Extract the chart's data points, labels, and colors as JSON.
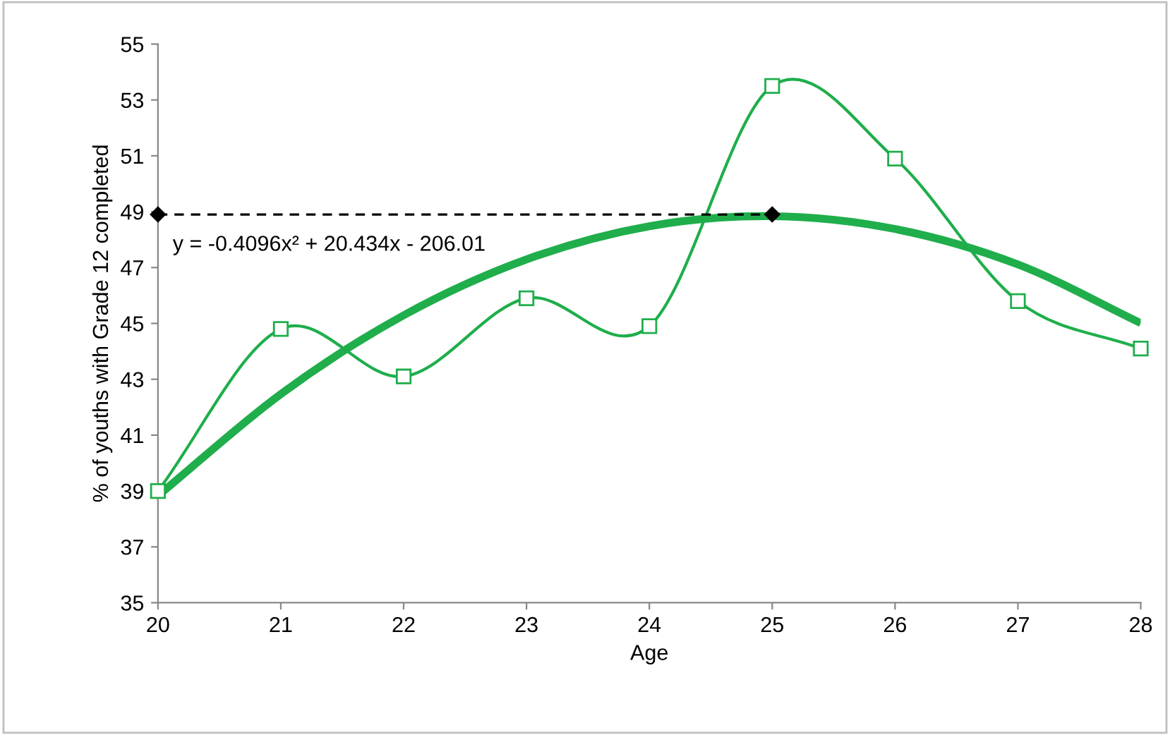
{
  "chart_data": {
    "type": "line",
    "xlabel": "Age",
    "ylabel": "% of youths with Grade 12 completed",
    "xlim": [
      20,
      28
    ],
    "xticks": [
      20,
      21,
      22,
      23,
      24,
      25,
      26,
      27,
      28
    ],
    "ylim": [
      35,
      55
    ],
    "yticks": [
      35,
      37,
      39,
      41,
      43,
      45,
      47,
      49,
      51,
      53,
      55
    ],
    "grid": false,
    "legend": false,
    "series": [
      {
        "x": [
          20,
          21,
          22,
          23,
          24,
          25,
          26,
          27,
          28
        ],
        "values": [
          39.0,
          44.8,
          43.1,
          45.9,
          44.9,
          53.5,
          50.9,
          45.8,
          44.1
        ],
        "color": "#1fae4b",
        "marker": "square",
        "line_style": "solid"
      },
      {
        "x": [
          20,
          21,
          22,
          23,
          24,
          25,
          26,
          27,
          28
        ],
        "values": [
          38.83,
          42.47,
          45.29,
          47.29,
          48.48,
          48.84,
          48.38,
          47.11,
          45.01
        ],
        "color": "#1fae4b",
        "marker": "none",
        "line_style": "solid"
      },
      {
        "x": [
          20,
          25
        ],
        "values": [
          48.9,
          48.9
        ],
        "color": "#000000",
        "marker": "diamond",
        "line_style": "dashed"
      }
    ],
    "annotations": [
      "y = -0.4096x² + 20.434x - 206.01"
    ]
  }
}
